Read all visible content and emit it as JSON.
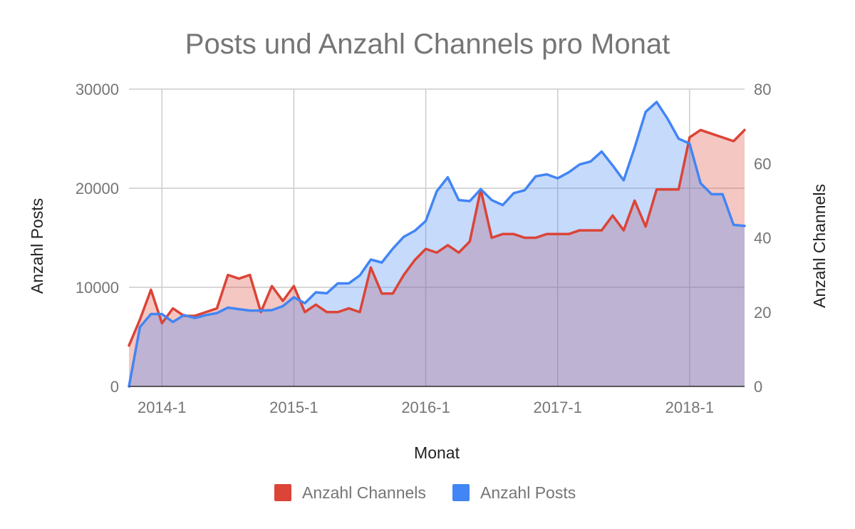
{
  "chart_data": {
    "type": "area",
    "title": "Posts und Anzahl Channels pro Monat",
    "xlabel": "Monat",
    "ylabel": "Anzahl Posts",
    "y2label": "Anzahl Channels",
    "ylim": [
      0,
      30000
    ],
    "y2lim": [
      0,
      80
    ],
    "yticks": [
      "0",
      "10000",
      "20000",
      "30000"
    ],
    "y2ticks": [
      "0",
      "20",
      "40",
      "60",
      "80"
    ],
    "xticks": [
      "2014-1",
      "2015-1",
      "2016-1",
      "2017-1",
      "2018-1"
    ],
    "grid": true,
    "legend_position": "bottom",
    "x": [
      "2013-10",
      "2013-11",
      "2013-12",
      "2014-1",
      "2014-2",
      "2014-3",
      "2014-4",
      "2014-5",
      "2014-6",
      "2014-7",
      "2014-8",
      "2014-9",
      "2014-10",
      "2014-11",
      "2014-12",
      "2015-1",
      "2015-2",
      "2015-3",
      "2015-4",
      "2015-5",
      "2015-6",
      "2015-7",
      "2015-8",
      "2015-9",
      "2015-10",
      "2015-11",
      "2015-12",
      "2016-1",
      "2016-2",
      "2016-3",
      "2016-4",
      "2016-5",
      "2016-6",
      "2016-7",
      "2016-8",
      "2016-9",
      "2016-10",
      "2016-11",
      "2016-12",
      "2017-1",
      "2017-2",
      "2017-3",
      "2017-4",
      "2017-5",
      "2017-6",
      "2017-7",
      "2017-8",
      "2017-9",
      "2017-10",
      "2017-11",
      "2017-12",
      "2018-1",
      "2018-2",
      "2018-3",
      "2018-4",
      "2018-5",
      "2018-6"
    ],
    "series": [
      {
        "name": "Anzahl Channels",
        "axis": "right",
        "color": "#db4437",
        "fill": "#f4c7c3",
        "values": [
          11,
          18,
          26,
          17,
          21,
          19,
          19,
          20,
          21,
          30,
          29,
          30,
          20,
          27,
          23,
          27,
          20,
          22,
          20,
          20,
          21,
          20,
          32,
          25,
          25,
          30,
          34,
          37,
          36,
          38,
          36,
          39,
          53,
          40,
          41,
          41,
          40,
          40,
          41,
          41,
          41,
          42,
          42,
          42,
          46,
          42,
          50,
          43,
          53,
          53,
          53,
          67,
          69,
          68,
          67,
          66,
          69
        ]
      },
      {
        "name": "Anzahl Posts",
        "axis": "left",
        "color": "#4285f4",
        "fill": "#c6dafc",
        "values": [
          0,
          6000,
          7300,
          7300,
          6500,
          7200,
          6900,
          7200,
          7400,
          7950,
          7800,
          7650,
          7650,
          7700,
          8100,
          9000,
          8400,
          9500,
          9400,
          10400,
          10400,
          11200,
          12800,
          12500,
          13900,
          15100,
          15700,
          16700,
          19700,
          21100,
          18800,
          18700,
          19900,
          18800,
          18300,
          19500,
          19800,
          21200,
          21400,
          21000,
          21600,
          22400,
          22700,
          23700,
          22300,
          20800,
          24100,
          27700,
          28700,
          27000,
          25000,
          24500,
          20500,
          19400,
          19400,
          16300,
          16200
        ]
      }
    ]
  }
}
